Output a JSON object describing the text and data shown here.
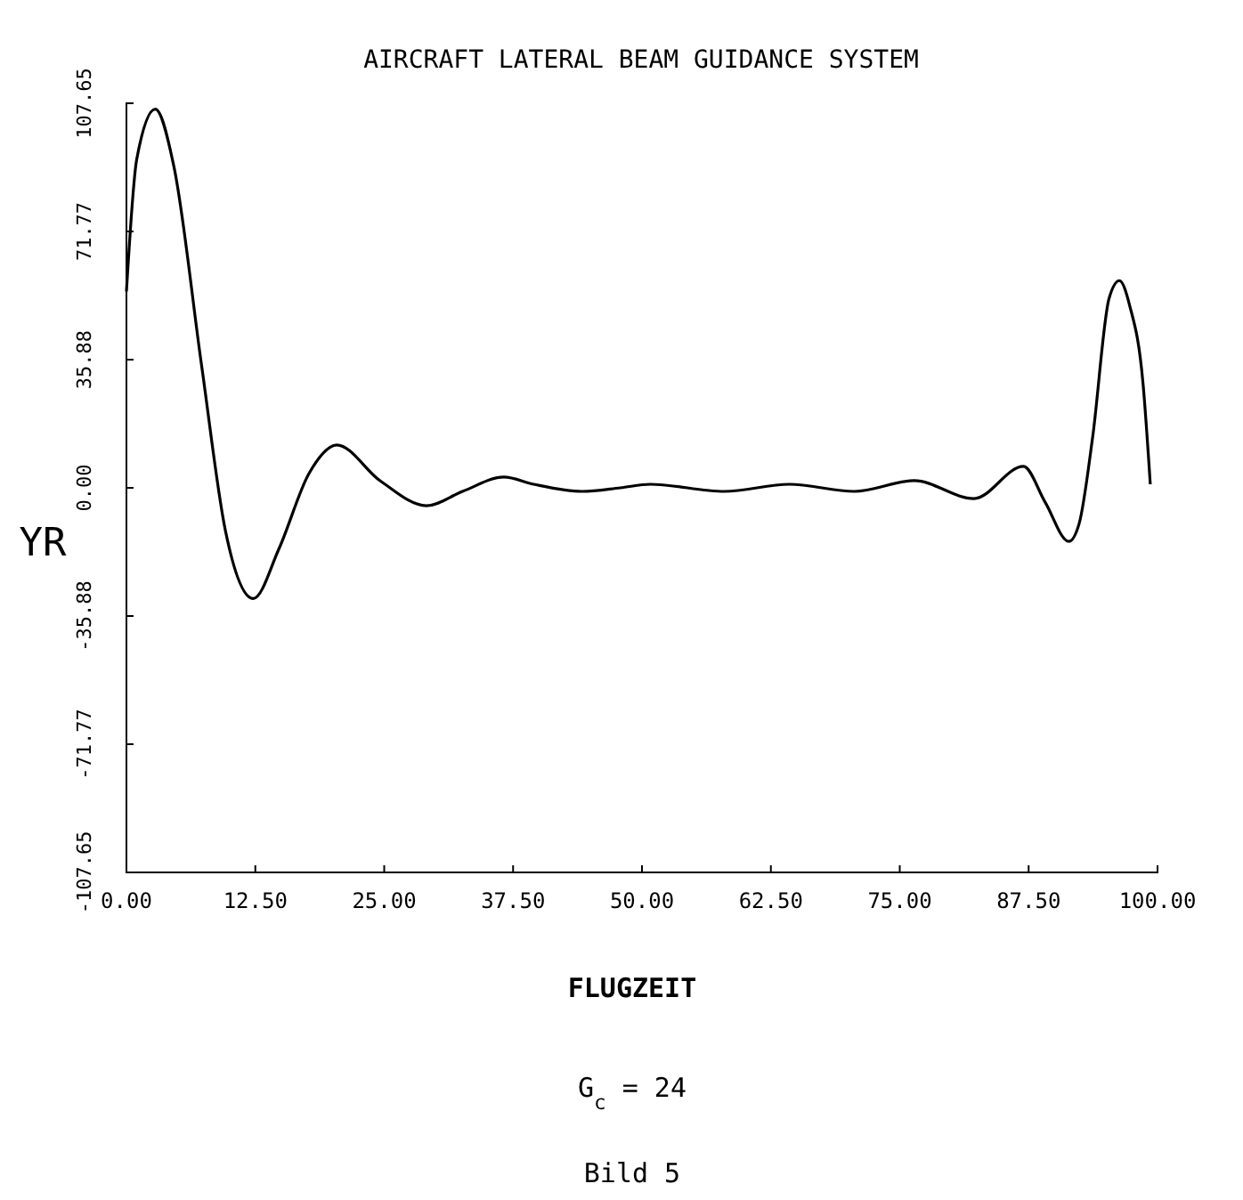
{
  "chart_data": {
    "type": "line",
    "title": "AIRCRAFT LATERAL BEAM GUIDANCE SYSTEM",
    "xlabel": "FLUGZEIT",
    "ylabel": "YR",
    "subtitle": "G$_{c}$ = 24",
    "annotations": [
      "Bild 5"
    ],
    "xlim": [
      0,
      100
    ],
    "ylim": [
      -107.65,
      107.65
    ],
    "xticks": [
      {
        "value": 0,
        "label": "0.00"
      },
      {
        "value": 12.5,
        "label": "12.50"
      },
      {
        "value": 25,
        "label": "25.00"
      },
      {
        "value": 37.5,
        "label": "37.50"
      },
      {
        "value": 50,
        "label": "50.00"
      },
      {
        "value": 62.5,
        "label": "62.50"
      },
      {
        "value": 75,
        "label": "75.00"
      },
      {
        "value": 87.5,
        "label": "87.50"
      },
      {
        "value": 100,
        "label": "100.00"
      }
    ],
    "yticks": [
      {
        "value": -107.65,
        "label": "-107.65"
      },
      {
        "value": -71.77,
        "label": "-71.77"
      },
      {
        "value": -35.88,
        "label": "-35.88"
      },
      {
        "value": 0,
        "label": "0.00"
      },
      {
        "value": 35.88,
        "label": "35.88"
      },
      {
        "value": 71.77,
        "label": "71.77"
      },
      {
        "value": 107.65,
        "label": "107.65"
      }
    ],
    "grid": false,
    "line_style": "solid",
    "series": [
      {
        "color": "#000000",
        "x": [
          0,
          1,
          2.8,
          4.6,
          7.3,
          9.6,
          12.3,
          14.8,
          17.7,
          20.4,
          24.6,
          29.1,
          32.6,
          36.6,
          39.5,
          44.2,
          47.9,
          50.8,
          58,
          64.3,
          70.6,
          76.4,
          82.2,
          87,
          89.1,
          91.4,
          92.4,
          93.7,
          95.3,
          96.3,
          97.3,
          98.6,
          99.3
        ],
        "values": [
          55,
          92,
          106,
          90,
          34,
          -12,
          -31,
          -17,
          4,
          12,
          2,
          -5,
          -1,
          3,
          1,
          -1,
          0,
          1,
          -1,
          1,
          -1,
          2,
          -3,
          6,
          -4,
          -15,
          -10,
          14,
          53,
          58,
          51,
          29,
          1
        ]
      }
    ]
  }
}
